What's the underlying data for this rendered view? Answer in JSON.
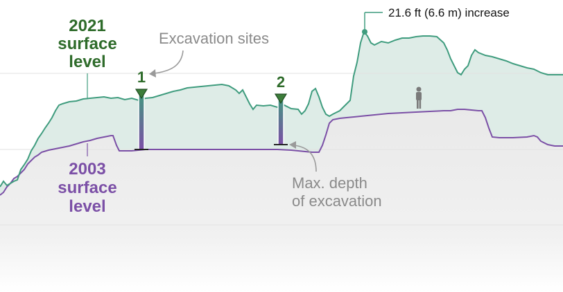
{
  "chart_data": {
    "type": "area",
    "x_range": [
      0,
      812
    ],
    "series": [
      {
        "name": "2021 surface level",
        "color": "#3f9c7e",
        "points": [
          [
            0,
            270
          ],
          [
            5,
            262
          ],
          [
            10,
            268
          ],
          [
            15,
            265
          ],
          [
            20,
            262
          ],
          [
            25,
            260
          ],
          [
            30,
            245
          ],
          [
            35,
            238
          ],
          [
            40,
            230
          ],
          [
            45,
            218
          ],
          [
            50,
            210
          ],
          [
            55,
            200
          ],
          [
            60,
            193
          ],
          [
            65,
            185
          ],
          [
            70,
            178
          ],
          [
            75,
            170
          ],
          [
            80,
            160
          ],
          [
            85,
            152
          ],
          [
            90,
            150
          ],
          [
            100,
            147
          ],
          [
            110,
            146
          ],
          [
            120,
            143
          ],
          [
            130,
            142
          ],
          [
            140,
            141
          ],
          [
            150,
            140
          ],
          [
            160,
            142
          ],
          [
            170,
            141
          ],
          [
            180,
            144
          ],
          [
            190,
            142
          ],
          [
            200,
            145
          ],
          [
            210,
            142
          ],
          [
            220,
            141
          ],
          [
            230,
            138
          ],
          [
            240,
            135
          ],
          [
            250,
            132
          ],
          [
            260,
            130
          ],
          [
            270,
            127
          ],
          [
            280,
            126
          ],
          [
            290,
            125
          ],
          [
            300,
            124
          ],
          [
            310,
            123
          ],
          [
            320,
            122
          ],
          [
            330,
            124
          ],
          [
            340,
            130
          ],
          [
            345,
            135
          ],
          [
            350,
            130
          ],
          [
            355,
            140
          ],
          [
            360,
            150
          ],
          [
            365,
            158
          ],
          [
            370,
            152
          ],
          [
            380,
            153
          ],
          [
            390,
            152
          ],
          [
            400,
            155
          ],
          [
            410,
            152
          ],
          [
            420,
            157
          ],
          [
            430,
            158
          ],
          [
            435,
            165
          ],
          [
            440,
            160
          ],
          [
            445,
            150
          ],
          [
            450,
            132
          ],
          [
            455,
            128
          ],
          [
            460,
            140
          ],
          [
            465,
            155
          ],
          [
            470,
            165
          ],
          [
            475,
            168
          ],
          [
            480,
            165
          ],
          [
            490,
            160
          ],
          [
            500,
            150
          ],
          [
            505,
            145
          ],
          [
            510,
            110
          ],
          [
            515,
            90
          ],
          [
            520,
            62
          ],
          [
            525,
            46
          ],
          [
            530,
            52
          ],
          [
            535,
            62
          ],
          [
            540,
            65
          ],
          [
            550,
            60
          ],
          [
            560,
            62
          ],
          [
            570,
            58
          ],
          [
            580,
            55
          ],
          [
            590,
            55
          ],
          [
            600,
            53
          ],
          [
            610,
            52
          ],
          [
            620,
            52
          ],
          [
            630,
            53
          ],
          [
            640,
            62
          ],
          [
            645,
            72
          ],
          [
            650,
            85
          ],
          [
            655,
            95
          ],
          [
            660,
            105
          ],
          [
            665,
            108
          ],
          [
            670,
            100
          ],
          [
            675,
            95
          ],
          [
            680,
            80
          ],
          [
            685,
            72
          ],
          [
            690,
            76
          ],
          [
            700,
            80
          ],
          [
            710,
            82
          ],
          [
            720,
            85
          ],
          [
            730,
            88
          ],
          [
            740,
            92
          ],
          [
            750,
            95
          ],
          [
            760,
            98
          ],
          [
            770,
            100
          ],
          [
            780,
            105
          ],
          [
            790,
            108
          ],
          [
            800,
            108
          ],
          [
            812,
            108
          ]
        ]
      },
      {
        "name": "2003 surface level",
        "color": "#7b4fa6",
        "points": [
          [
            0,
            282
          ],
          [
            5,
            278
          ],
          [
            10,
            270
          ],
          [
            15,
            265
          ],
          [
            20,
            258
          ],
          [
            25,
            255
          ],
          [
            30,
            250
          ],
          [
            35,
            245
          ],
          [
            40,
            237
          ],
          [
            45,
            232
          ],
          [
            50,
            227
          ],
          [
            55,
            224
          ],
          [
            60,
            220
          ],
          [
            70,
            217
          ],
          [
            80,
            215
          ],
          [
            90,
            213
          ],
          [
            100,
            211
          ],
          [
            110,
            208
          ],
          [
            120,
            205
          ],
          [
            130,
            203
          ],
          [
            140,
            200
          ],
          [
            150,
            198
          ],
          [
            160,
            196
          ],
          [
            163,
            196
          ],
          [
            168,
            210
          ],
          [
            172,
            218
          ],
          [
            180,
            218
          ],
          [
            190,
            218
          ],
          [
            200,
            217
          ],
          [
            210,
            216
          ],
          [
            220,
            216
          ],
          [
            240,
            216
          ],
          [
            260,
            216
          ],
          [
            280,
            216
          ],
          [
            300,
            216
          ],
          [
            320,
            216
          ],
          [
            340,
            216
          ],
          [
            360,
            216
          ],
          [
            380,
            216
          ],
          [
            400,
            216
          ],
          [
            420,
            217
          ],
          [
            430,
            218
          ],
          [
            440,
            219
          ],
          [
            450,
            220
          ],
          [
            460,
            220
          ],
          [
            465,
            210
          ],
          [
            470,
            195
          ],
          [
            475,
            178
          ],
          [
            480,
            173
          ],
          [
            490,
            171
          ],
          [
            500,
            170
          ],
          [
            520,
            168
          ],
          [
            540,
            166
          ],
          [
            560,
            164
          ],
          [
            580,
            163
          ],
          [
            600,
            162
          ],
          [
            620,
            161
          ],
          [
            640,
            160
          ],
          [
            650,
            160
          ],
          [
            660,
            158
          ],
          [
            670,
            158
          ],
          [
            680,
            159
          ],
          [
            690,
            160
          ],
          [
            695,
            160
          ],
          [
            700,
            170
          ],
          [
            705,
            185
          ],
          [
            710,
            198
          ],
          [
            720,
            199
          ],
          [
            740,
            199
          ],
          [
            760,
            198
          ],
          [
            770,
            196
          ],
          [
            775,
            198
          ],
          [
            780,
            204
          ],
          [
            790,
            209
          ],
          [
            800,
            211
          ],
          [
            812,
            211
          ]
        ]
      }
    ],
    "excavation_sites": [
      {
        "label": "1",
        "x": 204,
        "top": 131,
        "bottom": 216
      },
      {
        "label": "2",
        "x": 405,
        "top": 138,
        "bottom": 209
      }
    ],
    "annotations": {
      "label_2021": [
        "2021",
        "surface",
        "level"
      ],
      "label_2003": [
        "2003",
        "surface",
        "level"
      ],
      "excavation_sites": "Excavation sites",
      "max_depth": [
        "Max. depth",
        "of excavation"
      ],
      "increase": "21.6 ft (6.6 m) increase"
    },
    "colors": {
      "green_line": "#3f9c7e",
      "green_fill": "#dcebe6",
      "purple_line": "#7b4fa6",
      "base_fill": "#ebebeb",
      "green_text": "#2e6b2a",
      "purple_text": "#7b4fa6",
      "note_text": "#8a8a8a"
    },
    "grid": true
  }
}
